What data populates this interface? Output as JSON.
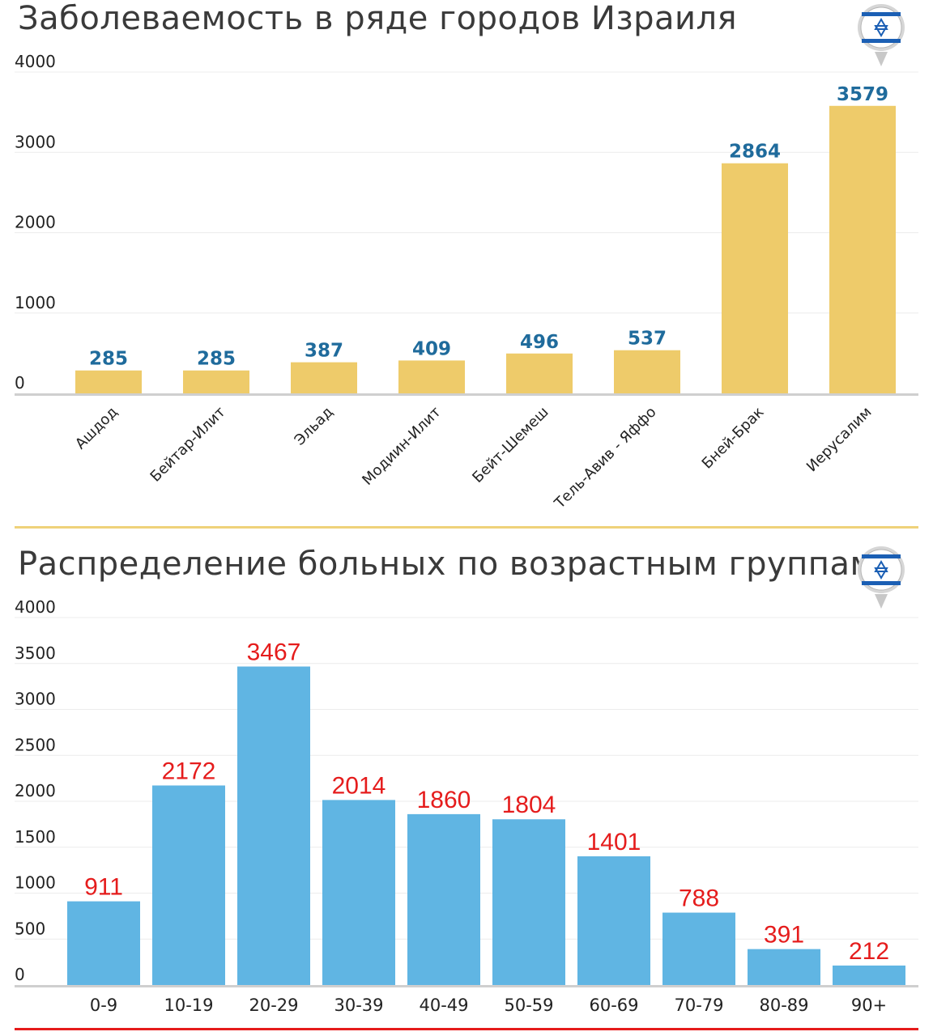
{
  "colors": {
    "city_bar": "#eecb6a",
    "city_value": "#1f6b9c",
    "age_bar": "#60b5e3",
    "age_value": "#e51c1c",
    "flag_blue": "#1b5fb4"
  },
  "icons": {
    "flag": "israel-flag-pin-icon"
  },
  "chart_data": [
    {
      "type": "bar",
      "title": "Заболеваемость в ряде городов Израиля",
      "categories": [
        "Ашдод",
        "Бейтар-Илит",
        "Эльад",
        "Модиин-Илит",
        "Бейт-Шемеш",
        "Тель-Авив - Яффо",
        "Бней-Брак",
        "Иерусалим"
      ],
      "values": [
        285,
        285,
        387,
        409,
        496,
        537,
        2864,
        3579
      ],
      "yticks": [
        0,
        1000,
        2000,
        3000,
        4000
      ],
      "ylim": [
        0,
        4000
      ],
      "grid": true,
      "data_labels": true
    },
    {
      "type": "bar",
      "title": "Распределение больных по возрастным группам",
      "categories": [
        "0-9",
        "10-19",
        "20-29",
        "30-39",
        "40-49",
        "50-59",
        "60-69",
        "70-79",
        "80-89",
        "90+"
      ],
      "values": [
        911,
        2172,
        3467,
        2014,
        1860,
        1804,
        1401,
        788,
        391,
        212
      ],
      "yticks": [
        0,
        500,
        1000,
        1500,
        2000,
        2500,
        3000,
        3500,
        4000
      ],
      "ylim": [
        0,
        4000
      ],
      "grid": true,
      "data_labels": true
    }
  ]
}
